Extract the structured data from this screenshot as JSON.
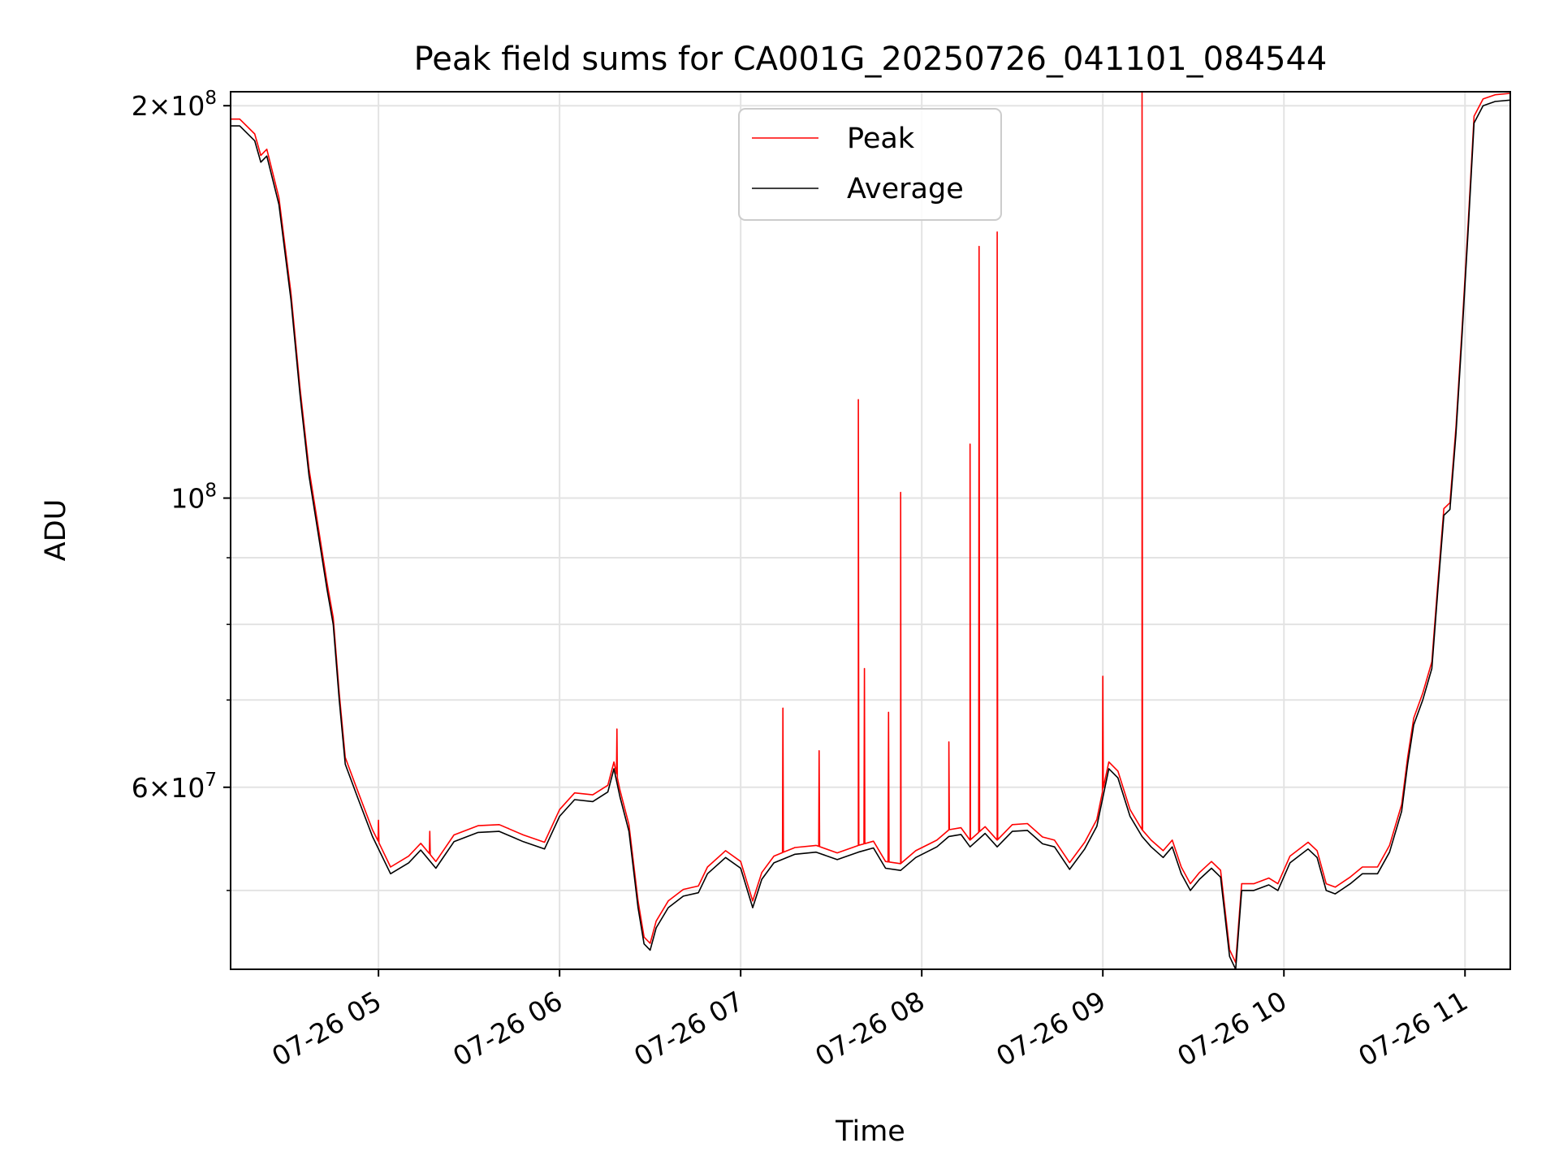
{
  "chart_data": {
    "type": "line",
    "title": "Peak field sums for CA001G_20250726_041101_084544",
    "xlabel": "Time",
    "ylabel": "ADU",
    "x_scale": "time",
    "y_scale": "log",
    "xlim": [
      "07-26 04:11",
      "07-26 11:15"
    ],
    "ylim": [
      43500000,
      205000000
    ],
    "x_ticks": [
      "07-26 05",
      "07-26 06",
      "07-26 07",
      "07-26 08",
      "07-26 09",
      "07-26 10",
      "07-26 11"
    ],
    "y_tick_labels": [
      {
        "value": 200000000,
        "base": "2×10",
        "exp": "8"
      },
      {
        "value": 100000000,
        "base": "10",
        "exp": "8"
      },
      {
        "value": 60000000,
        "base": "6×10",
        "exp": "7"
      }
    ],
    "y_minor_ticks": [
      50000000,
      70000000,
      80000000,
      90000000
    ],
    "grid": true,
    "legend": {
      "position": "top-center"
    },
    "colors": {
      "peak": "#ff0000",
      "average": "#000000"
    },
    "series": [
      {
        "name": "Average",
        "color": "#000000",
        "points": [
          [
            "07-26 04:11",
            193000000
          ],
          [
            "07-26 04:14",
            193000000
          ],
          [
            "07-26 04:19",
            188000000
          ],
          [
            "07-26 04:21",
            181000000
          ],
          [
            "07-26 04:23",
            183000000
          ],
          [
            "07-26 04:27",
            168000000
          ],
          [
            "07-26 04:31",
            142000000
          ],
          [
            "07-26 04:34",
            120000000
          ],
          [
            "07-26 04:37",
            104000000
          ],
          [
            "07-26 04:40",
            94000000
          ],
          [
            "07-26 04:43",
            85000000
          ],
          [
            "07-26 04:45",
            80000000
          ],
          [
            "07-26 04:47",
            70000000
          ],
          [
            "07-26 04:49",
            62500000
          ],
          [
            "07-26 04:53",
            59000000
          ],
          [
            "07-26 04:58",
            55000000
          ],
          [
            "07-26 05:04",
            51500000
          ],
          [
            "07-26 05:10",
            52500000
          ],
          [
            "07-26 05:14",
            53700000
          ],
          [
            "07-26 05:19",
            52000000
          ],
          [
            "07-26 05:25",
            54500000
          ],
          [
            "07-26 05:33",
            55400000
          ],
          [
            "07-26 05:40",
            55500000
          ],
          [
            "07-26 05:48",
            54500000
          ],
          [
            "07-26 05:55",
            53800000
          ],
          [
            "07-26 06:00",
            57000000
          ],
          [
            "07-26 06:05",
            58700000
          ],
          [
            "07-26 06:11",
            58500000
          ],
          [
            "07-26 06:16",
            59500000
          ],
          [
            "07-26 06:18",
            62000000
          ],
          [
            "07-26 06:20",
            59000000
          ],
          [
            "07-26 06:23",
            55500000
          ],
          [
            "07-26 06:26",
            48500000
          ],
          [
            "07-26 06:28",
            45500000
          ],
          [
            "07-26 06:30",
            45000000
          ],
          [
            "07-26 06:32",
            46800000
          ],
          [
            "07-26 06:36",
            48500000
          ],
          [
            "07-26 06:41",
            49500000
          ],
          [
            "07-26 06:46",
            49800000
          ],
          [
            "07-26 06:49",
            51500000
          ],
          [
            "07-26 06:55",
            53000000
          ],
          [
            "07-26 07:00",
            52000000
          ],
          [
            "07-26 07:04",
            48500000
          ],
          [
            "07-26 07:07",
            51000000
          ],
          [
            "07-26 07:11",
            52500000
          ],
          [
            "07-26 07:18",
            53300000
          ],
          [
            "07-26 07:25",
            53500000
          ],
          [
            "07-26 07:32",
            52800000
          ],
          [
            "07-26 07:39",
            53500000
          ],
          [
            "07-26 07:44",
            53900000
          ],
          [
            "07-26 07:48",
            52000000
          ],
          [
            "07-26 07:53",
            51800000
          ],
          [
            "07-26 07:58",
            53000000
          ],
          [
            "07-26 08:05",
            54000000
          ],
          [
            "07-26 08:09",
            55000000
          ],
          [
            "07-26 08:13",
            55200000
          ],
          [
            "07-26 08:16",
            54000000
          ],
          [
            "07-26 08:21",
            55300000
          ],
          [
            "07-26 08:25",
            54000000
          ],
          [
            "07-26 08:30",
            55500000
          ],
          [
            "07-26 08:35",
            55600000
          ],
          [
            "07-26 08:40",
            54300000
          ],
          [
            "07-26 08:44",
            54000000
          ],
          [
            "07-26 08:49",
            51900000
          ],
          [
            "07-26 08:54",
            53800000
          ],
          [
            "07-26 08:58",
            56000000
          ],
          [
            "07-26 09:02",
            62000000
          ],
          [
            "07-26 09:05",
            61000000
          ],
          [
            "07-26 09:09",
            57000000
          ],
          [
            "07-26 09:13",
            55000000
          ],
          [
            "07-26 09:16",
            54000000
          ],
          [
            "07-26 09:20",
            53000000
          ],
          [
            "07-26 09:23",
            54000000
          ],
          [
            "07-26 09:26",
            51500000
          ],
          [
            "07-26 09:29",
            50000000
          ],
          [
            "07-26 09:32",
            51000000
          ],
          [
            "07-26 09:36",
            52000000
          ],
          [
            "07-26 09:39",
            51200000
          ],
          [
            "07-26 09:42",
            44500000
          ],
          [
            "07-26 09:44",
            43500000
          ],
          [
            "07-26 09:46",
            50000000
          ],
          [
            "07-26 09:50",
            50000000
          ],
          [
            "07-26 09:55",
            50500000
          ],
          [
            "07-26 09:58",
            50000000
          ],
          [
            "07-26 10:02",
            52500000
          ],
          [
            "07-26 10:08",
            53800000
          ],
          [
            "07-26 10:11",
            53000000
          ],
          [
            "07-26 10:14",
            50000000
          ],
          [
            "07-26 10:17",
            49700000
          ],
          [
            "07-26 10:22",
            50600000
          ],
          [
            "07-26 10:26",
            51500000
          ],
          [
            "07-26 10:31",
            51500000
          ],
          [
            "07-26 10:35",
            53500000
          ],
          [
            "07-26 10:39",
            57500000
          ],
          [
            "07-26 10:41",
            62500000
          ],
          [
            "07-26 10:43",
            67000000
          ],
          [
            "07-26 10:46",
            70000000
          ],
          [
            "07-26 10:49",
            74000000
          ],
          [
            "07-26 10:51",
            85000000
          ],
          [
            "07-26 10:53",
            97000000
          ],
          [
            "07-26 10:55",
            98000000
          ],
          [
            "07-26 10:57",
            112000000
          ],
          [
            "07-26 10:59",
            133000000
          ],
          [
            "07-26 11:01",
            160000000
          ],
          [
            "07-26 11:03",
            194000000
          ],
          [
            "07-26 11:06",
            200000000
          ],
          [
            "07-26 11:10",
            201500000
          ],
          [
            "07-26 11:15",
            202000000
          ]
        ]
      },
      {
        "name": "Peak",
        "color": "#ff0000",
        "offset_ratio": 1.012,
        "spikes": [
          [
            "07-26 05:00",
            56600000
          ],
          [
            "07-26 05:17",
            55500000
          ],
          [
            "07-26 05:43",
            55800000
          ],
          [
            "07-26 06:19",
            66500000
          ],
          [
            "07-26 07:14",
            69000000
          ],
          [
            "07-26 07:26",
            64000000
          ],
          [
            "07-26 07:39",
            119000000
          ],
          [
            "07-26 07:41",
            74000000
          ],
          [
            "07-26 07:49",
            68500000
          ],
          [
            "07-26 07:53",
            101000000
          ],
          [
            "07-26 08:09",
            65000000
          ],
          [
            "07-26 08:16",
            110000000
          ],
          [
            "07-26 08:19",
            156000000
          ],
          [
            "07-26 08:25",
            160000000
          ],
          [
            "07-26 09:00",
            73000000
          ],
          [
            "07-26 09:13",
            210000000
          ]
        ]
      }
    ]
  }
}
